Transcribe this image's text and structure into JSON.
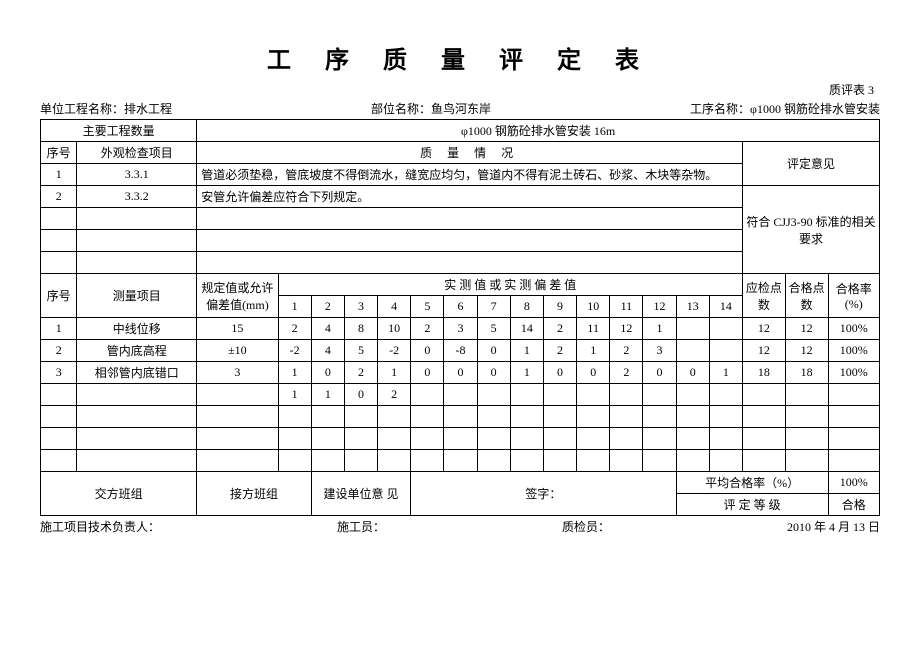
{
  "title": "工 序 质 量 评 定 表",
  "topnote": "质评表 3",
  "header": {
    "unit_label": "单位工程名称：",
    "unit_value": "排水工程",
    "part_label": "部位名称：",
    "part_value": "鱼鸟河东岸",
    "proc_label": "工序名称：",
    "proc_value": "φ1000 钢筋砼排水管安装"
  },
  "row1": {
    "main_qty_label": "主要工程数量",
    "desc": "φ1000 钢筋砼排水管安装 16m"
  },
  "visual_header": {
    "seq": "序号",
    "item": "外观检查项目",
    "situation": "质  量  情  况",
    "opinion": "评定意见"
  },
  "visual_rows": [
    {
      "seq": "1",
      "item": "3.3.1",
      "desc": "管道必须垫稳，管底坡度不得倒流水，缝宽应均匀，管道内不得有泥土砖石、砂浆、木块等杂物。"
    },
    {
      "seq": "2",
      "item": "3.3.2",
      "desc": "安管允许偏差应符合下列规定。"
    }
  ],
  "opinion_text": "符合 CJJ3-90 标准的相关要求",
  "measure_header": {
    "seq": "序号",
    "item": "测量项目",
    "spec": "规定值或允许偏差值(mm)",
    "values": "实 测 值 或 实 测 偏 差 值",
    "checkpts": "应检点数",
    "passpts": "合格点数",
    "passrate": "合格率(%)"
  },
  "col_nums": [
    "1",
    "2",
    "3",
    "4",
    "5",
    "6",
    "7",
    "8",
    "9",
    "10",
    "11",
    "12",
    "13",
    "14"
  ],
  "measure_rows": [
    {
      "seq": "1",
      "item": "中线位移",
      "spec": "15",
      "v": [
        "2",
        "4",
        "8",
        "10",
        "2",
        "3",
        "5",
        "14",
        "2",
        "11",
        "12",
        "1",
        "",
        ""
      ],
      "check": "12",
      "pass": "12",
      "rate": "100%"
    },
    {
      "seq": "2",
      "item": "管内底高程",
      "spec": "±10",
      "v": [
        "-2",
        "4",
        "5",
        "-2",
        "0",
        "-8",
        "0",
        "1",
        "2",
        "1",
        "2",
        "3",
        "",
        ""
      ],
      "check": "12",
      "pass": "12",
      "rate": "100%"
    },
    {
      "seq": "3",
      "item": "相邻管内底错口",
      "spec": "3",
      "v": [
        "1",
        "0",
        "2",
        "1",
        "0",
        "0",
        "0",
        "1",
        "0",
        "0",
        "2",
        "0",
        "0",
        "1"
      ],
      "check": "18",
      "pass": "18",
      "rate": "100%"
    },
    {
      "seq": "",
      "item": "",
      "spec": "",
      "v": [
        "1",
        "1",
        "0",
        "2",
        "",
        "",
        "",
        "",
        "",
        "",
        "",
        "",
        "",
        ""
      ],
      "check": "",
      "pass": "",
      "rate": ""
    },
    {
      "seq": "",
      "item": "",
      "spec": "",
      "v": [
        "",
        "",
        "",
        "",
        "",
        "",
        "",
        "",
        "",
        "",
        "",
        "",
        "",
        ""
      ],
      "check": "",
      "pass": "",
      "rate": ""
    },
    {
      "seq": "",
      "item": "",
      "spec": "",
      "v": [
        "",
        "",
        "",
        "",
        "",
        "",
        "",
        "",
        "",
        "",
        "",
        "",
        "",
        ""
      ],
      "check": "",
      "pass": "",
      "rate": ""
    },
    {
      "seq": "",
      "item": "",
      "spec": "",
      "v": [
        "",
        "",
        "",
        "",
        "",
        "",
        "",
        "",
        "",
        "",
        "",
        "",
        "",
        ""
      ],
      "check": "",
      "pass": "",
      "rate": ""
    }
  ],
  "bottom": {
    "sender": "交方班组",
    "receiver": "接方班组",
    "build_opinion": "建设单位意  见",
    "sign": "签字：",
    "avg_rate_label": "平均合格率（%）",
    "avg_rate_value": "100%",
    "grade_label": "评  定  等  级",
    "grade_value": "合格"
  },
  "footer": {
    "tech": "施工项目技术负责人：",
    "builder": "施工员：",
    "inspector": "质检员：",
    "date": "2010 年 4 月 13 日"
  }
}
